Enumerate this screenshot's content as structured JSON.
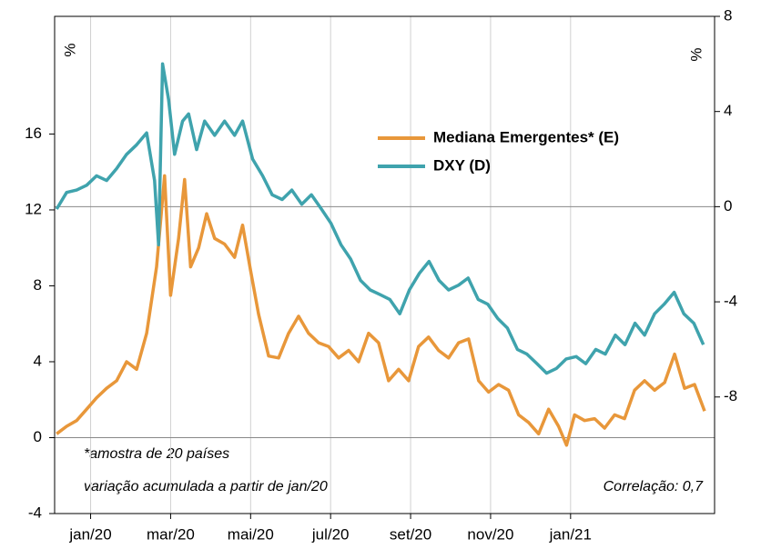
{
  "chart_data": {
    "type": "line",
    "left_unit": "%",
    "right_unit": "%",
    "annotations": [
      "*amostra de 20 países",
      "variação acumulada a partir de jan/20",
      "Correlação: 0,7"
    ],
    "xlim": [
      -0.9,
      15.6
    ],
    "xticks": [
      {
        "value": 0,
        "label": "jan/20"
      },
      {
        "value": 2,
        "label": "mar/20"
      },
      {
        "value": 4,
        "label": "mai/20"
      },
      {
        "value": 6,
        "label": "jul/20"
      },
      {
        "value": 8,
        "label": "set/20"
      },
      {
        "value": 10,
        "label": "nov/20"
      },
      {
        "value": 12,
        "label": "jan/21"
      }
    ],
    "ylim": [
      -4,
      22.2
    ],
    "yticks": [
      -4,
      0,
      4,
      8,
      12,
      16
    ],
    "y2lim": [
      -12.9,
      8
    ],
    "y2ticks": [
      -8,
      -4,
      0,
      4,
      8
    ],
    "grid": true,
    "series": [
      {
        "name": "Mediana Emergentes* (E)",
        "color": "#e8973a",
        "axis": "y",
        "x": [
          -0.85,
          -0.6,
          -0.35,
          -0.1,
          0.15,
          0.4,
          0.65,
          0.9,
          1.15,
          1.4,
          1.65,
          1.85,
          2.0,
          2.2,
          2.35,
          2.5,
          2.7,
          2.9,
          3.1,
          3.35,
          3.6,
          3.8,
          4.0,
          4.2,
          4.45,
          4.7,
          4.95,
          5.2,
          5.45,
          5.7,
          5.95,
          6.2,
          6.45,
          6.7,
          6.95,
          7.2,
          7.45,
          7.7,
          7.95,
          8.2,
          8.45,
          8.7,
          8.95,
          9.2,
          9.45,
          9.7,
          9.95,
          10.2,
          10.45,
          10.7,
          10.95,
          11.2,
          11.45,
          11.7,
          11.9,
          12.1,
          12.35,
          12.6,
          12.85,
          13.1,
          13.35,
          13.6,
          13.85,
          14.1,
          14.35,
          14.6,
          14.85,
          15.1,
          15.35
        ],
        "values": [
          0.2,
          0.6,
          0.9,
          1.5,
          2.1,
          2.6,
          3.0,
          4.0,
          3.6,
          5.5,
          9.0,
          13.8,
          7.5,
          10.5,
          13.6,
          9.0,
          10.0,
          11.8,
          10.5,
          10.2,
          9.5,
          11.2,
          8.8,
          6.5,
          4.3,
          4.2,
          5.5,
          6.4,
          5.5,
          5.0,
          4.8,
          4.2,
          4.6,
          4.0,
          5.5,
          5.0,
          3.0,
          3.6,
          3.0,
          4.8,
          5.3,
          4.6,
          4.2,
          5.0,
          5.2,
          3.0,
          2.4,
          2.8,
          2.5,
          1.2,
          0.8,
          0.2,
          1.5,
          0.6,
          -0.4,
          1.2,
          0.9,
          1.0,
          0.5,
          1.2,
          1.0,
          2.5,
          3.0,
          2.5,
          2.9,
          4.4,
          2.6,
          2.8,
          1.4
        ]
      },
      {
        "name": "DXY (D)",
        "color": "#3fa3ad",
        "axis": "y2",
        "x": [
          -0.85,
          -0.6,
          -0.35,
          -0.1,
          0.15,
          0.4,
          0.65,
          0.9,
          1.15,
          1.4,
          1.6,
          1.7,
          1.8,
          1.95,
          2.1,
          2.3,
          2.45,
          2.65,
          2.85,
          3.1,
          3.35,
          3.6,
          3.8,
          4.05,
          4.3,
          4.54,
          4.79,
          5.03,
          5.28,
          5.52,
          5.77,
          6.01,
          6.26,
          6.5,
          6.75,
          6.99,
          7.24,
          7.48,
          7.73,
          7.97,
          8.22,
          8.46,
          8.71,
          8.95,
          9.2,
          9.44,
          9.69,
          9.93,
          10.18,
          10.42,
          10.67,
          10.91,
          11.16,
          11.4,
          11.65,
          11.89,
          12.14,
          12.38,
          12.63,
          12.87,
          13.12,
          13.36,
          13.61,
          13.85,
          14.1,
          14.34,
          14.59,
          14.83,
          15.08,
          15.32
        ],
        "values": [
          -0.1,
          0.6,
          0.7,
          0.9,
          1.3,
          1.1,
          1.6,
          2.2,
          2.6,
          3.1,
          1.1,
          -1.6,
          6.0,
          4.5,
          2.2,
          3.6,
          3.9,
          2.4,
          3.6,
          3.0,
          3.6,
          3.0,
          3.6,
          2.0,
          1.3,
          0.5,
          0.3,
          0.7,
          0.1,
          0.5,
          -0.1,
          -0.7,
          -1.6,
          -2.2,
          -3.1,
          -3.5,
          -3.7,
          -3.9,
          -4.5,
          -3.5,
          -2.8,
          -2.3,
          -3.1,
          -3.5,
          -3.3,
          -3.0,
          -3.9,
          -4.1,
          -4.7,
          -5.1,
          -6.0,
          -6.2,
          -6.6,
          -7.0,
          -6.8,
          -6.4,
          -6.3,
          -6.6,
          -6.0,
          -6.2,
          -5.4,
          -5.8,
          -4.9,
          -5.4,
          -4.5,
          -4.1,
          -3.6,
          -4.5,
          -4.9,
          -5.8
        ]
      }
    ]
  }
}
